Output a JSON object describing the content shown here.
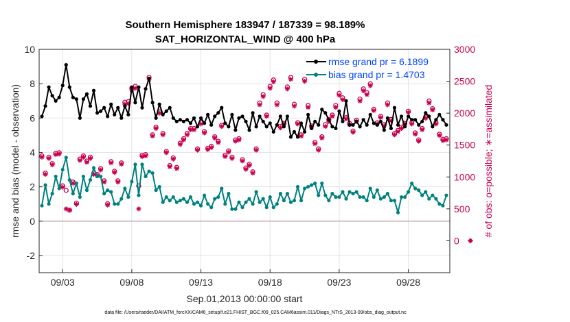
{
  "chart_data": {
    "type": "line",
    "title_line1": "Southern Hemisphere 183947 / 187339 = 98.189%",
    "title_line2": "SAT_HORIZONTAL_WIND @ 400 hPa",
    "ylabel_left": "rmse and bias (model - observation)",
    "ylabel_right": "# of obs: o=possible; ∗=assimilated",
    "xlabel": "Sep.01,2013 00:00:00 start",
    "footnote": "data file: /Users/raeder/DAI/ATM_forcXX/CAM6_setup/f.e21.FHIST_BGC.f09_025.CAM6assim.011/Diags_NTrS_2013-09/obs_diag_output.nc",
    "xlim": [
      1.3,
      31.0
    ],
    "ylim_left": [
      -3,
      10
    ],
    "ylim_right": [
      -500,
      3000
    ],
    "xticks": [
      3,
      8,
      13,
      18,
      23,
      28
    ],
    "xtick_labels": [
      "09/03",
      "09/08",
      "09/13",
      "09/18",
      "09/23",
      "09/28"
    ],
    "yticks_left": [
      -2,
      0,
      2,
      4,
      6,
      8,
      10
    ],
    "yticks_left_labels": [
      "-2",
      "0",
      "2",
      "4",
      "6",
      "8",
      "10"
    ],
    "yticks_right": [
      0,
      500,
      1000,
      1500,
      2000,
      2500,
      3000
    ],
    "yticks_right_labels": [
      "0",
      "500",
      "1000",
      "1500",
      "2000",
      "2500",
      "3000"
    ],
    "grid": true,
    "legend_position": "top-right",
    "colors": {
      "rmse": "#000000",
      "bias": "#008080",
      "obs": "#c8004f",
      "zero_line": "#c9a7b4",
      "axis": "#262626",
      "legend_text": "#0044ff"
    },
    "series": [
      {
        "name": "rmse grand pr = 6.1899",
        "key": "rmse",
        "x": [
          1.5,
          1.75,
          2.0,
          2.25,
          2.5,
          2.75,
          3.0,
          3.25,
          3.5,
          3.75,
          4.0,
          4.25,
          4.5,
          4.75,
          5.0,
          5.25,
          5.5,
          5.75,
          6.0,
          6.25,
          6.5,
          6.75,
          7.0,
          7.25,
          7.5,
          7.75,
          8.0,
          8.25,
          8.5,
          8.75,
          9.0,
          9.25,
          9.5,
          9.75,
          10.0,
          10.25,
          10.5,
          10.75,
          11.0,
          11.25,
          11.5,
          11.75,
          12.0,
          12.25,
          12.5,
          12.75,
          13.0,
          13.25,
          13.5,
          13.75,
          14.0,
          14.25,
          14.5,
          14.75,
          15.0,
          15.25,
          15.5,
          15.75,
          16.0,
          16.25,
          16.5,
          16.75,
          17.0,
          17.25,
          17.5,
          17.75,
          18.0,
          18.25,
          18.5,
          18.75,
          19.0,
          19.25,
          19.5,
          19.75,
          20.0,
          20.25,
          20.5,
          20.75,
          21.0,
          21.25,
          21.5,
          21.75,
          22.0,
          22.25,
          22.5,
          22.75,
          23.0,
          23.25,
          23.5,
          23.75,
          24.0,
          24.25,
          24.5,
          24.75,
          25.0,
          25.25,
          25.5,
          25.75,
          26.0,
          26.25,
          26.5,
          26.75,
          27.0,
          27.25,
          27.5,
          27.75,
          28.0,
          28.25,
          28.5,
          28.75,
          29.0,
          29.25,
          29.5,
          29.75,
          30.0,
          30.25,
          30.5,
          30.75
        ],
        "values": [
          6.1,
          6.7,
          7.8,
          7.3,
          7.0,
          7.2,
          7.9,
          9.1,
          7.8,
          7.2,
          7.1,
          6.0,
          7.1,
          7.4,
          6.7,
          7.6,
          6.3,
          6.4,
          6.6,
          6.1,
          6.8,
          6.2,
          6.6,
          6.0,
          6.7,
          6.2,
          7.8,
          6.9,
          7.8,
          6.6,
          7.7,
          8.3,
          6.9,
          6.0,
          6.8,
          6.2,
          6.4,
          6.6,
          6.0,
          5.8,
          5.9,
          5.8,
          5.9,
          5.7,
          6.0,
          5.5,
          6.0,
          5.7,
          6.2,
          5.6,
          6.1,
          6.3,
          6.6,
          5.7,
          5.5,
          6.2,
          5.3,
          6.0,
          6.1,
          5.8,
          5.3,
          6.3,
          5.5,
          6.1,
          5.8,
          5.5,
          5.7,
          5.2,
          5.6,
          6.1,
          5.5,
          6.1,
          4.9,
          5.2,
          4.9,
          5.7,
          5.2,
          6.2,
          5.4,
          5.8,
          5.6,
          6.5,
          6.3,
          5.9,
          5.5,
          5.4,
          6.4,
          5.8,
          7.0,
          5.6,
          5.6,
          5.8,
          5.5,
          5.9,
          5.6,
          6.2,
          5.7,
          5.6,
          5.8,
          5.3,
          6.0,
          5.4,
          6.6,
          5.6,
          6.1,
          5.5,
          6.1,
          5.9,
          5.9,
          5.6,
          5.8,
          6.3,
          6.1,
          5.5,
          5.9,
          6.2,
          5.9,
          5.6
        ]
      },
      {
        "name": "bias grand pr = 1.4703",
        "key": "bias",
        "x": [
          1.5,
          1.75,
          2.0,
          2.25,
          2.5,
          2.75,
          3.0,
          3.25,
          3.5,
          3.75,
          4.0,
          4.25,
          4.5,
          4.75,
          5.0,
          5.25,
          5.5,
          5.75,
          6.0,
          6.25,
          6.5,
          6.75,
          7.0,
          7.25,
          7.5,
          7.75,
          8.0,
          8.25,
          8.5,
          8.75,
          9.0,
          9.25,
          9.5,
          9.75,
          10.0,
          10.25,
          10.5,
          10.75,
          11.0,
          11.25,
          11.5,
          11.75,
          12.0,
          12.25,
          12.5,
          12.75,
          13.0,
          13.25,
          13.5,
          13.75,
          14.0,
          14.25,
          14.5,
          14.75,
          15.0,
          15.25,
          15.5,
          15.75,
          16.0,
          16.25,
          16.5,
          16.75,
          17.0,
          17.25,
          17.5,
          17.75,
          18.0,
          18.25,
          18.5,
          18.75,
          19.0,
          19.25,
          19.5,
          19.75,
          20.0,
          20.25,
          20.5,
          20.75,
          21.0,
          21.25,
          21.5,
          21.75,
          22.0,
          22.25,
          22.5,
          22.75,
          23.0,
          23.25,
          23.5,
          23.75,
          24.0,
          24.25,
          24.5,
          24.75,
          25.0,
          25.25,
          25.5,
          25.75,
          26.0,
          26.25,
          26.5,
          26.75,
          27.0,
          27.25,
          27.5,
          27.75,
          28.0,
          28.25,
          28.5,
          28.75,
          29.0,
          29.25,
          29.5,
          29.75,
          30.0,
          30.25,
          30.5,
          30.75
        ],
        "values": [
          0.9,
          2.1,
          1.0,
          1.6,
          2.6,
          1.9,
          3.0,
          3.7,
          2.4,
          1.6,
          2.2,
          1.4,
          2.6,
          1.8,
          2.4,
          3.1,
          2.6,
          2.6,
          1.6,
          1.8,
          1.7,
          1.0,
          1.0,
          1.3,
          1.9,
          1.4,
          2.3,
          3.3,
          1.5,
          3.3,
          2.6,
          2.9,
          2.8,
          1.8,
          2.0,
          1.1,
          1.4,
          1.2,
          1.4,
          1.1,
          1.2,
          1.3,
          1.1,
          1.4,
          1.0,
          1.1,
          0.9,
          1.5,
          1.0,
          0.8,
          1.3,
          1.4,
          1.9,
          1.0,
          1.6,
          0.7,
          0.7,
          1.1,
          0.8,
          1.1,
          1.3,
          1.0,
          1.7,
          1.1,
          1.3,
          0.8,
          1.4,
          0.8,
          1.0,
          1.6,
          1.2,
          1.6,
          1.1,
          1.2,
          2.0,
          1.2,
          1.9,
          2.0,
          2.1,
          2.2,
          1.5,
          2.2,
          1.5,
          1.2,
          1.6,
          1.4,
          1.4,
          1.7,
          1.3,
          1.7,
          1.6,
          1.7,
          1.4,
          1.4,
          1.2,
          1.9,
          1.4,
          1.8,
          1.3,
          1.4,
          1.6,
          1.2,
          1.2,
          0.5,
          1.4,
          1.4,
          1.7,
          2.2,
          1.9,
          1.8,
          1.5,
          1.7,
          1.3,
          1.5,
          1.3,
          1.0,
          0.9,
          1.5
        ]
      }
    ],
    "obs_possible": {
      "x": [
        1.5,
        1.75,
        2.0,
        2.25,
        2.5,
        2.75,
        3.0,
        3.25,
        3.5,
        3.75,
        4.0,
        4.25,
        4.5,
        4.75,
        5.0,
        5.25,
        5.5,
        5.75,
        6.0,
        6.25,
        6.5,
        6.75,
        7.0,
        7.25,
        7.5,
        7.75,
        8.0,
        8.25,
        8.5,
        8.75,
        9.0,
        9.25,
        9.5,
        9.75,
        10.0,
        10.25,
        10.5,
        10.75,
        11.0,
        11.25,
        11.5,
        11.75,
        12.0,
        12.25,
        12.5,
        12.75,
        13.0,
        13.25,
        13.5,
        13.75,
        14.0,
        14.25,
        14.5,
        14.75,
        15.0,
        15.25,
        15.5,
        15.75,
        16.0,
        16.25,
        16.5,
        16.75,
        17.0,
        17.25,
        17.5,
        17.75,
        18.0,
        18.25,
        18.5,
        18.75,
        19.0,
        19.25,
        19.5,
        19.75,
        20.0,
        20.25,
        20.5,
        20.75,
        21.0,
        21.25,
        21.5,
        21.75,
        22.0,
        22.25,
        22.5,
        22.75,
        23.0,
        23.25,
        23.5,
        23.75,
        24.0,
        24.25,
        24.5,
        24.75,
        25.0,
        25.25,
        25.5,
        25.75,
        26.0,
        26.25,
        26.5,
        26.75,
        27.0,
        27.25,
        27.5,
        27.75,
        28.0,
        28.25,
        28.5,
        28.75,
        29.0,
        29.25,
        29.5,
        29.75,
        30.0,
        30.25,
        30.5,
        30.75
      ],
      "values": [
        1330,
        1060,
        1310,
        1210,
        1370,
        1380,
        860,
        790,
        480,
        920,
        590,
        1280,
        1330,
        1250,
        1310,
        1060,
        1040,
        1130,
        940,
        580,
        1240,
        1090,
        940,
        1220,
        2170,
        2180,
        2390,
        2420,
        860,
        1340,
        1350,
        2560,
        1660,
        1780,
        2020,
        1680,
        1400,
        1180,
        1300,
        1150,
        1530,
        1600,
        1680,
        1760,
        1760,
        1440,
        1850,
        1710,
        1450,
        1480,
        1630,
        1560,
        1810,
        1340,
        1410,
        1310,
        1580,
        1600,
        1270,
        1140,
        1200,
        1080,
        1440,
        2160,
        2290,
        1970,
        2420,
        2520,
        2160,
        1790,
        1840,
        2410,
        2560,
        2140,
        1850,
        1660,
        2530,
        2120,
        1800,
        1540,
        1440,
        1630,
        1820,
        1900,
        1970,
        2120,
        2310,
        2240,
        1930,
        1840,
        1720,
        1890,
        2220,
        2380,
        2320,
        2460,
        2060,
        1850,
        1950,
        1820,
        2160,
        1900,
        1680,
        1730,
        1780,
        1840,
        2030,
        1850,
        1690,
        1580,
        1760,
        1940,
        2190,
        2070,
        1850,
        1670,
        1590,
        1600
      ]
    },
    "obs_assimilated": {
      "x": [
        1.5,
        1.75,
        2.0,
        2.25,
        2.5,
        2.75,
        3.0,
        3.25,
        3.5,
        3.75,
        4.0,
        4.25,
        4.5,
        4.75,
        5.0,
        5.25,
        5.5,
        5.75,
        6.0,
        6.25,
        6.5,
        6.75,
        7.0,
        7.25,
        7.5,
        7.75,
        8.0,
        8.25,
        8.5,
        8.75,
        9.0,
        9.25,
        9.5,
        9.75,
        10.0,
        10.25,
        10.5,
        10.75,
        11.0,
        11.25,
        11.5,
        11.75,
        12.0,
        12.25,
        12.5,
        12.75,
        13.0,
        13.25,
        13.5,
        13.75,
        14.0,
        14.25,
        14.5,
        14.75,
        15.0,
        15.25,
        15.5,
        15.75,
        16.0,
        16.25,
        16.5,
        16.75,
        17.0,
        17.25,
        17.5,
        17.75,
        18.0,
        18.25,
        18.5,
        18.75,
        19.0,
        19.25,
        19.5,
        19.75,
        20.0,
        20.25,
        20.5,
        20.75,
        21.0,
        21.25,
        21.5,
        21.75,
        22.0,
        22.25,
        22.5,
        22.75,
        23.0,
        23.25,
        23.5,
        23.75,
        24.0,
        24.25,
        24.5,
        24.75,
        25.0,
        25.25,
        25.5,
        25.75,
        26.0,
        26.25,
        26.5,
        26.75,
        27.0,
        27.25,
        27.5,
        27.75,
        28.0,
        28.25,
        28.5,
        28.75,
        29.0,
        29.25,
        29.5,
        29.75,
        30.0,
        30.25,
        30.5,
        30.75
      ],
      "values": [
        1310,
        1040,
        1290,
        1190,
        1350,
        1360,
        840,
        500,
        480,
        900,
        570,
        1260,
        1310,
        1230,
        1290,
        1040,
        1020,
        1110,
        920,
        560,
        1220,
        1070,
        920,
        1200,
        2140,
        2150,
        2360,
        2390,
        500,
        1320,
        1330,
        2530,
        1640,
        1760,
        2000,
        1660,
        1380,
        1160,
        1280,
        1130,
        1510,
        1580,
        1660,
        1740,
        1740,
        1420,
        1830,
        1690,
        1430,
        1460,
        1610,
        1540,
        1790,
        1320,
        1390,
        1290,
        1560,
        1580,
        1250,
        1120,
        1180,
        1060,
        1420,
        2130,
        2260,
        1950,
        2390,
        2490,
        2130,
        1770,
        1820,
        2380,
        2530,
        2110,
        1830,
        1640,
        2500,
        2090,
        1780,
        1520,
        1420,
        1610,
        1790,
        1870,
        1950,
        2090,
        2280,
        2210,
        1910,
        1820,
        1700,
        1870,
        2190,
        2350,
        2290,
        2430,
        2040,
        1830,
        1930,
        1800,
        2130,
        1880,
        1660,
        1710,
        1760,
        1820,
        2010,
        1830,
        1670,
        1560,
        1740,
        1920,
        2160,
        2050,
        1830,
        1650,
        1570,
        1580
      ]
    },
    "obs_offscale_value": 0
  }
}
